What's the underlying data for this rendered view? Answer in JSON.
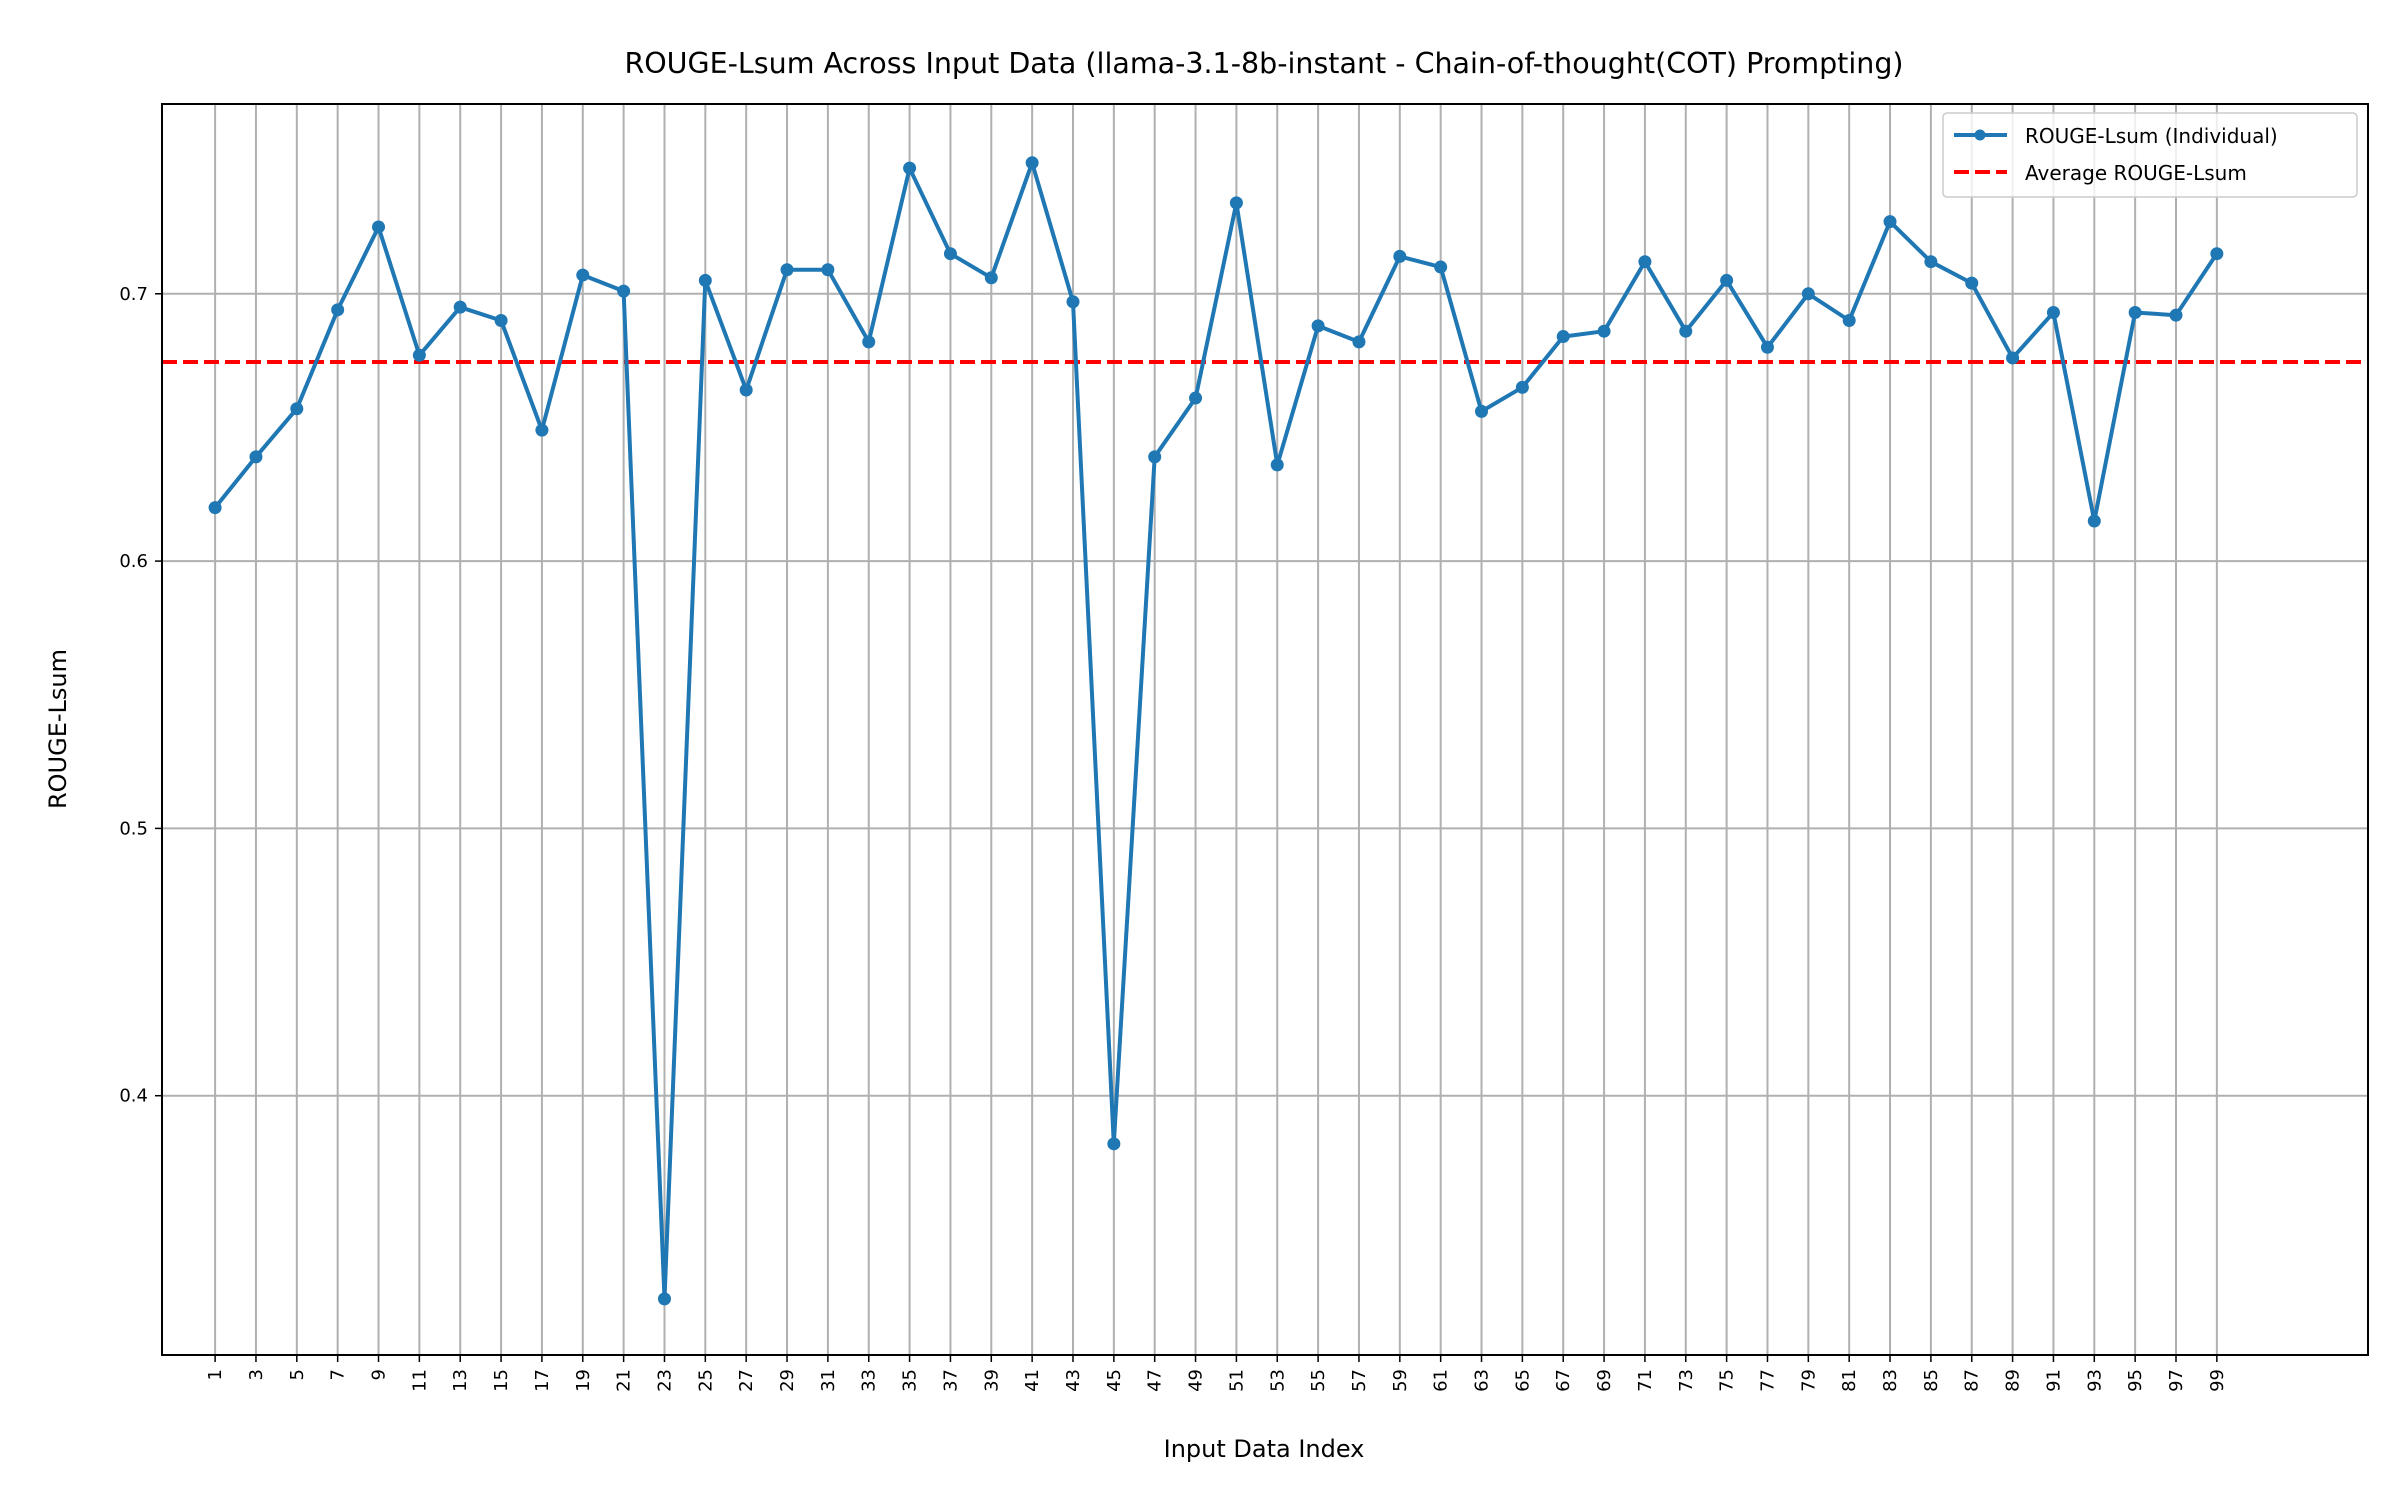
{
  "chart_data": {
    "type": "line",
    "title": "ROUGE-Lsum Across Input Data (llama-3.1-8b-instant - Chain-of-thought(COT) Prompting)",
    "xlabel": "Input Data Index",
    "ylabel": "ROUGE-Lsum",
    "xlim": [
      -1.6,
      106.4
    ],
    "ylim": [
      0.303,
      0.771
    ],
    "x_ticks": [
      1,
      3,
      5,
      7,
      9,
      11,
      13,
      15,
      17,
      19,
      21,
      23,
      25,
      27,
      29,
      31,
      33,
      35,
      37,
      39,
      41,
      43,
      45,
      47,
      49,
      51,
      53,
      55,
      57,
      59,
      61,
      63,
      65,
      67,
      69,
      71,
      73,
      75,
      77,
      79,
      81,
      83,
      85,
      87,
      89,
      91,
      93,
      95,
      97,
      99
    ],
    "x_tick_labels": [
      "1",
      "3",
      "5",
      "7",
      "9",
      "11",
      "13",
      "15",
      "17",
      "19",
      "21",
      "23",
      "25",
      "27",
      "29",
      "31",
      "33",
      "35",
      "37",
      "39",
      "41",
      "43",
      "45",
      "47",
      "49",
      "51",
      "53",
      "55",
      "57",
      "59",
      "61",
      "63",
      "65",
      "67",
      "69",
      "71",
      "73",
      "75",
      "77",
      "79",
      "81",
      "83",
      "85",
      "87",
      "89",
      "91",
      "93",
      "95",
      "97",
      "99"
    ],
    "y_ticks": [
      0.4,
      0.5,
      0.6,
      0.7
    ],
    "y_tick_labels": [
      "0.4",
      "0.5",
      "0.6",
      "0.7"
    ],
    "grid": true,
    "legend_position": "top-right",
    "x": [
      1,
      3,
      5,
      7,
      9,
      11,
      13,
      15,
      17,
      19,
      21,
      23,
      25,
      27,
      29,
      31,
      33,
      35,
      37,
      39,
      41,
      43,
      45,
      47,
      49,
      51,
      53,
      55,
      57,
      59,
      61,
      63,
      65,
      67,
      69,
      71,
      73,
      75,
      77,
      79,
      81,
      83,
      85,
      87,
      89,
      91,
      93,
      95,
      97,
      99
    ],
    "series": [
      {
        "name": "ROUGE-Lsum (Individual)",
        "color": "#1f77b4",
        "style": "solid-with-markers",
        "values": [
          0.62,
          0.639,
          0.657,
          0.694,
          0.725,
          0.677,
          0.695,
          0.69,
          0.649,
          0.707,
          0.701,
          0.324,
          0.705,
          0.664,
          0.709,
          0.709,
          0.682,
          0.747,
          0.715,
          0.706,
          0.749,
          0.697,
          0.382,
          0.639,
          0.661,
          0.734,
          0.636,
          0.688,
          0.682,
          0.714,
          0.71,
          0.656,
          0.665,
          0.684,
          0.686,
          0.712,
          0.686,
          0.705,
          0.68,
          0.7,
          0.69,
          0.727,
          0.712,
          0.704,
          0.676,
          0.693,
          0.615,
          0.693,
          0.692,
          0.715
        ]
      },
      {
        "name": "Average ROUGE-Lsum",
        "color": "#ff0000",
        "style": "dashed",
        "value": 0.6745
      }
    ]
  }
}
